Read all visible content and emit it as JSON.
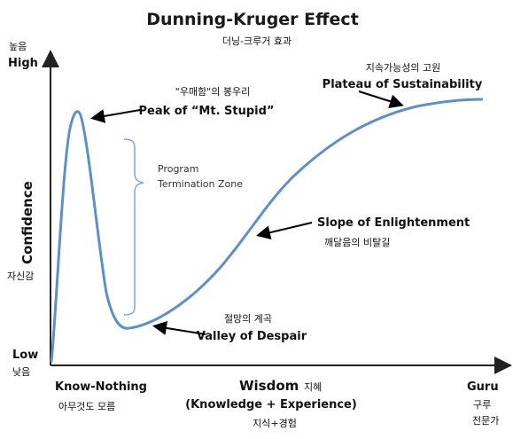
{
  "title": "Dunning-Kruger Effect",
  "subtitle_ko": "더닝-크루거 효과",
  "y_axis": {
    "label": "Confidence",
    "label_ko": "자신감",
    "high": "High",
    "high_ko": "높음",
    "low": "Low",
    "low_ko": "낮음"
  },
  "x_axis": {
    "label": "Wisdom",
    "label_ko": "지혜",
    "sublabel": "(Knowledge + Experience)",
    "sublabel_ko": "지식+경험",
    "start": "Know-Nothing",
    "start_ko": "아무것도 모름",
    "end": "Guru",
    "end_ko_line1": "구루",
    "end_ko_line2": "전문가"
  },
  "annotations": {
    "peak": {
      "ko": "\"우매함\"의 봉우리",
      "en": "Peak of “Mt. Stupid”"
    },
    "program_zone": {
      "line1": "Program",
      "line2": "Termination Zone"
    },
    "slope": {
      "en": "Slope of Enlightenment",
      "ko": "깨달음의 비탈길"
    },
    "valley": {
      "ko": "절망의 계곡",
      "en": "Valley of Despair"
    },
    "plateau": {
      "ko": "지속가능성의 고원",
      "en": "Plateau of Sustainability"
    }
  },
  "colors": {
    "curve": "#5b8fd1",
    "bracket": "#7aa7da",
    "axis": "#222222",
    "arrow": "#000000"
  }
}
